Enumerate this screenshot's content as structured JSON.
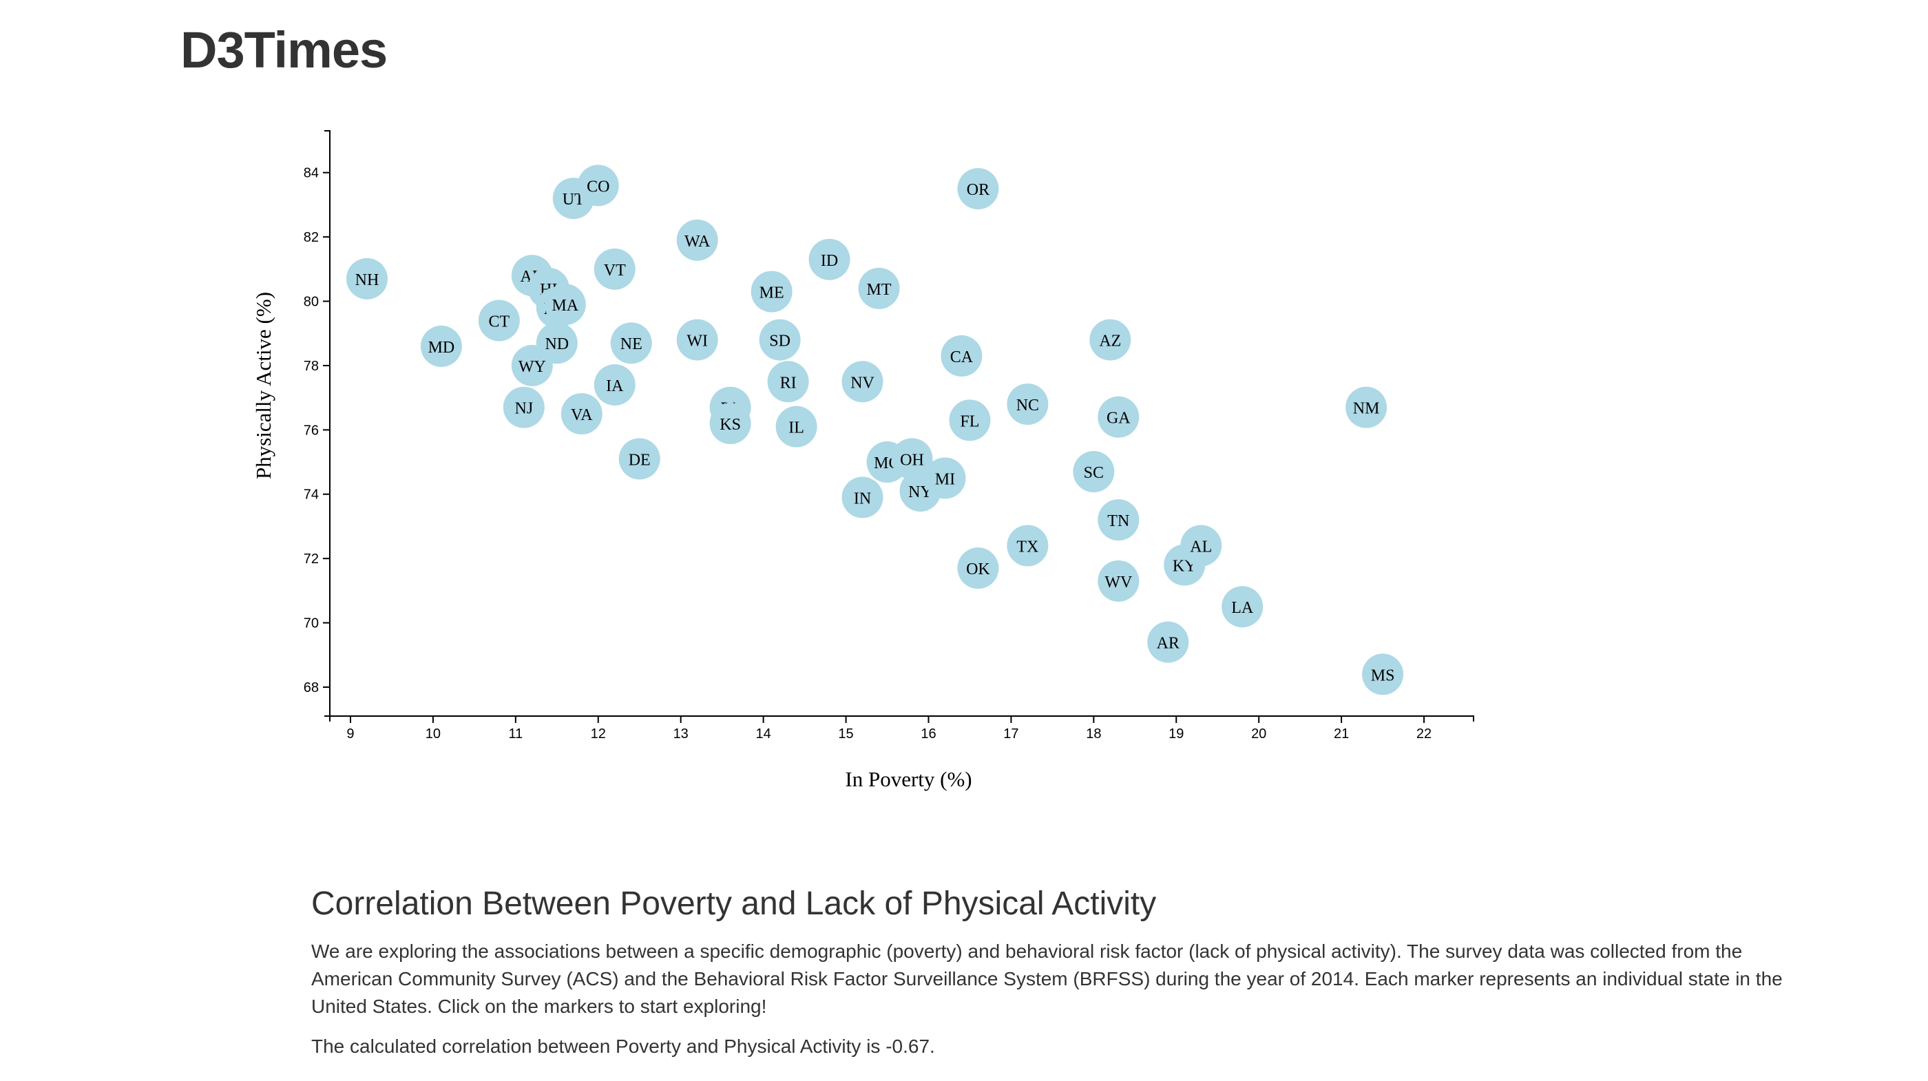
{
  "page": {
    "title": "D3Times"
  },
  "article": {
    "heading": "Correlation Between Poverty and Lack of Physical Activity",
    "description": "We are exploring the associations between a specific demographic (poverty) and behavioral risk factor (lack of physical activity). The survey data was collected from the American Community Survey (ACS) and the Behavioral Risk Factor Surveillance System (BRFSS) during the year of 2014. Each marker represents an individual state in the United States. Click on the markers to start exploring!",
    "correlation_text": "The calculated correlation between Poverty and Physical Activity is -0.67."
  },
  "colors": {
    "marker": "#add8e6",
    "text": "#333333",
    "axis": "#000000"
  },
  "chart_data": {
    "type": "scatter",
    "xlabel": "In Poverty (%)",
    "ylabel": "Physically Active (%)",
    "xlim": [
      8.75,
      22.6
    ],
    "ylim": [
      67.1,
      85.3
    ],
    "xticks": [
      9,
      10,
      11,
      12,
      13,
      14,
      15,
      16,
      17,
      18,
      19,
      20,
      21,
      22
    ],
    "yticks": [
      68,
      70,
      72,
      74,
      76,
      78,
      80,
      82,
      84
    ],
    "grid": false,
    "points": [
      {
        "label": "NH",
        "x": 9.2,
        "y": 80.7
      },
      {
        "label": "MD",
        "x": 10.1,
        "y": 78.6
      },
      {
        "label": "CT",
        "x": 10.8,
        "y": 79.4
      },
      {
        "label": "NJ",
        "x": 11.1,
        "y": 76.7
      },
      {
        "label": "WY",
        "x": 11.2,
        "y": 78.0
      },
      {
        "label": "AK",
        "x": 11.2,
        "y": 80.8
      },
      {
        "label": "HI",
        "x": 11.4,
        "y": 80.4
      },
      {
        "label": "MN",
        "x": 11.5,
        "y": 79.8
      },
      {
        "label": "MA",
        "x": 11.6,
        "y": 79.9
      },
      {
        "label": "ND",
        "x": 11.5,
        "y": 78.7
      },
      {
        "label": "UT",
        "x": 11.7,
        "y": 83.2
      },
      {
        "label": "VA",
        "x": 11.8,
        "y": 76.5
      },
      {
        "label": "CO",
        "x": 12.0,
        "y": 83.6
      },
      {
        "label": "IA",
        "x": 12.2,
        "y": 77.4
      },
      {
        "label": "VT",
        "x": 12.2,
        "y": 81.0
      },
      {
        "label": "NE",
        "x": 12.4,
        "y": 78.7
      },
      {
        "label": "DE",
        "x": 12.5,
        "y": 75.1
      },
      {
        "label": "WA",
        "x": 13.2,
        "y": 81.9
      },
      {
        "label": "WI",
        "x": 13.2,
        "y": 78.8
      },
      {
        "label": "PA",
        "x": 13.6,
        "y": 76.7
      },
      {
        "label": "KS",
        "x": 13.6,
        "y": 76.2
      },
      {
        "label": "ME",
        "x": 14.1,
        "y": 80.3
      },
      {
        "label": "SD",
        "x": 14.2,
        "y": 78.8
      },
      {
        "label": "RI",
        "x": 14.3,
        "y": 77.5
      },
      {
        "label": "IL",
        "x": 14.4,
        "y": 76.1
      },
      {
        "label": "ID",
        "x": 14.8,
        "y": 81.3
      },
      {
        "label": "NV",
        "x": 15.2,
        "y": 77.5
      },
      {
        "label": "IN",
        "x": 15.2,
        "y": 73.9
      },
      {
        "label": "MT",
        "x": 15.4,
        "y": 80.4
      },
      {
        "label": "MO",
        "x": 15.5,
        "y": 75.0
      },
      {
        "label": "OH",
        "x": 15.8,
        "y": 75.1
      },
      {
        "label": "NY",
        "x": 15.9,
        "y": 74.1
      },
      {
        "label": "MI",
        "x": 16.2,
        "y": 74.5
      },
      {
        "label": "CA",
        "x": 16.4,
        "y": 78.3
      },
      {
        "label": "FL",
        "x": 16.5,
        "y": 76.3
      },
      {
        "label": "OR",
        "x": 16.6,
        "y": 83.5
      },
      {
        "label": "OK",
        "x": 16.6,
        "y": 71.7
      },
      {
        "label": "NC",
        "x": 17.2,
        "y": 76.8
      },
      {
        "label": "TX",
        "x": 17.2,
        "y": 72.4
      },
      {
        "label": "SC",
        "x": 18.0,
        "y": 74.7
      },
      {
        "label": "AZ",
        "x": 18.2,
        "y": 78.8
      },
      {
        "label": "GA",
        "x": 18.3,
        "y": 76.4
      },
      {
        "label": "TN",
        "x": 18.3,
        "y": 73.2
      },
      {
        "label": "WV",
        "x": 18.3,
        "y": 71.3
      },
      {
        "label": "AR",
        "x": 18.9,
        "y": 69.4
      },
      {
        "label": "KY",
        "x": 19.1,
        "y": 71.8
      },
      {
        "label": "AL",
        "x": 19.3,
        "y": 72.4
      },
      {
        "label": "LA",
        "x": 19.8,
        "y": 70.5
      },
      {
        "label": "NM",
        "x": 21.3,
        "y": 76.7
      },
      {
        "label": "MS",
        "x": 21.5,
        "y": 68.4
      }
    ]
  }
}
